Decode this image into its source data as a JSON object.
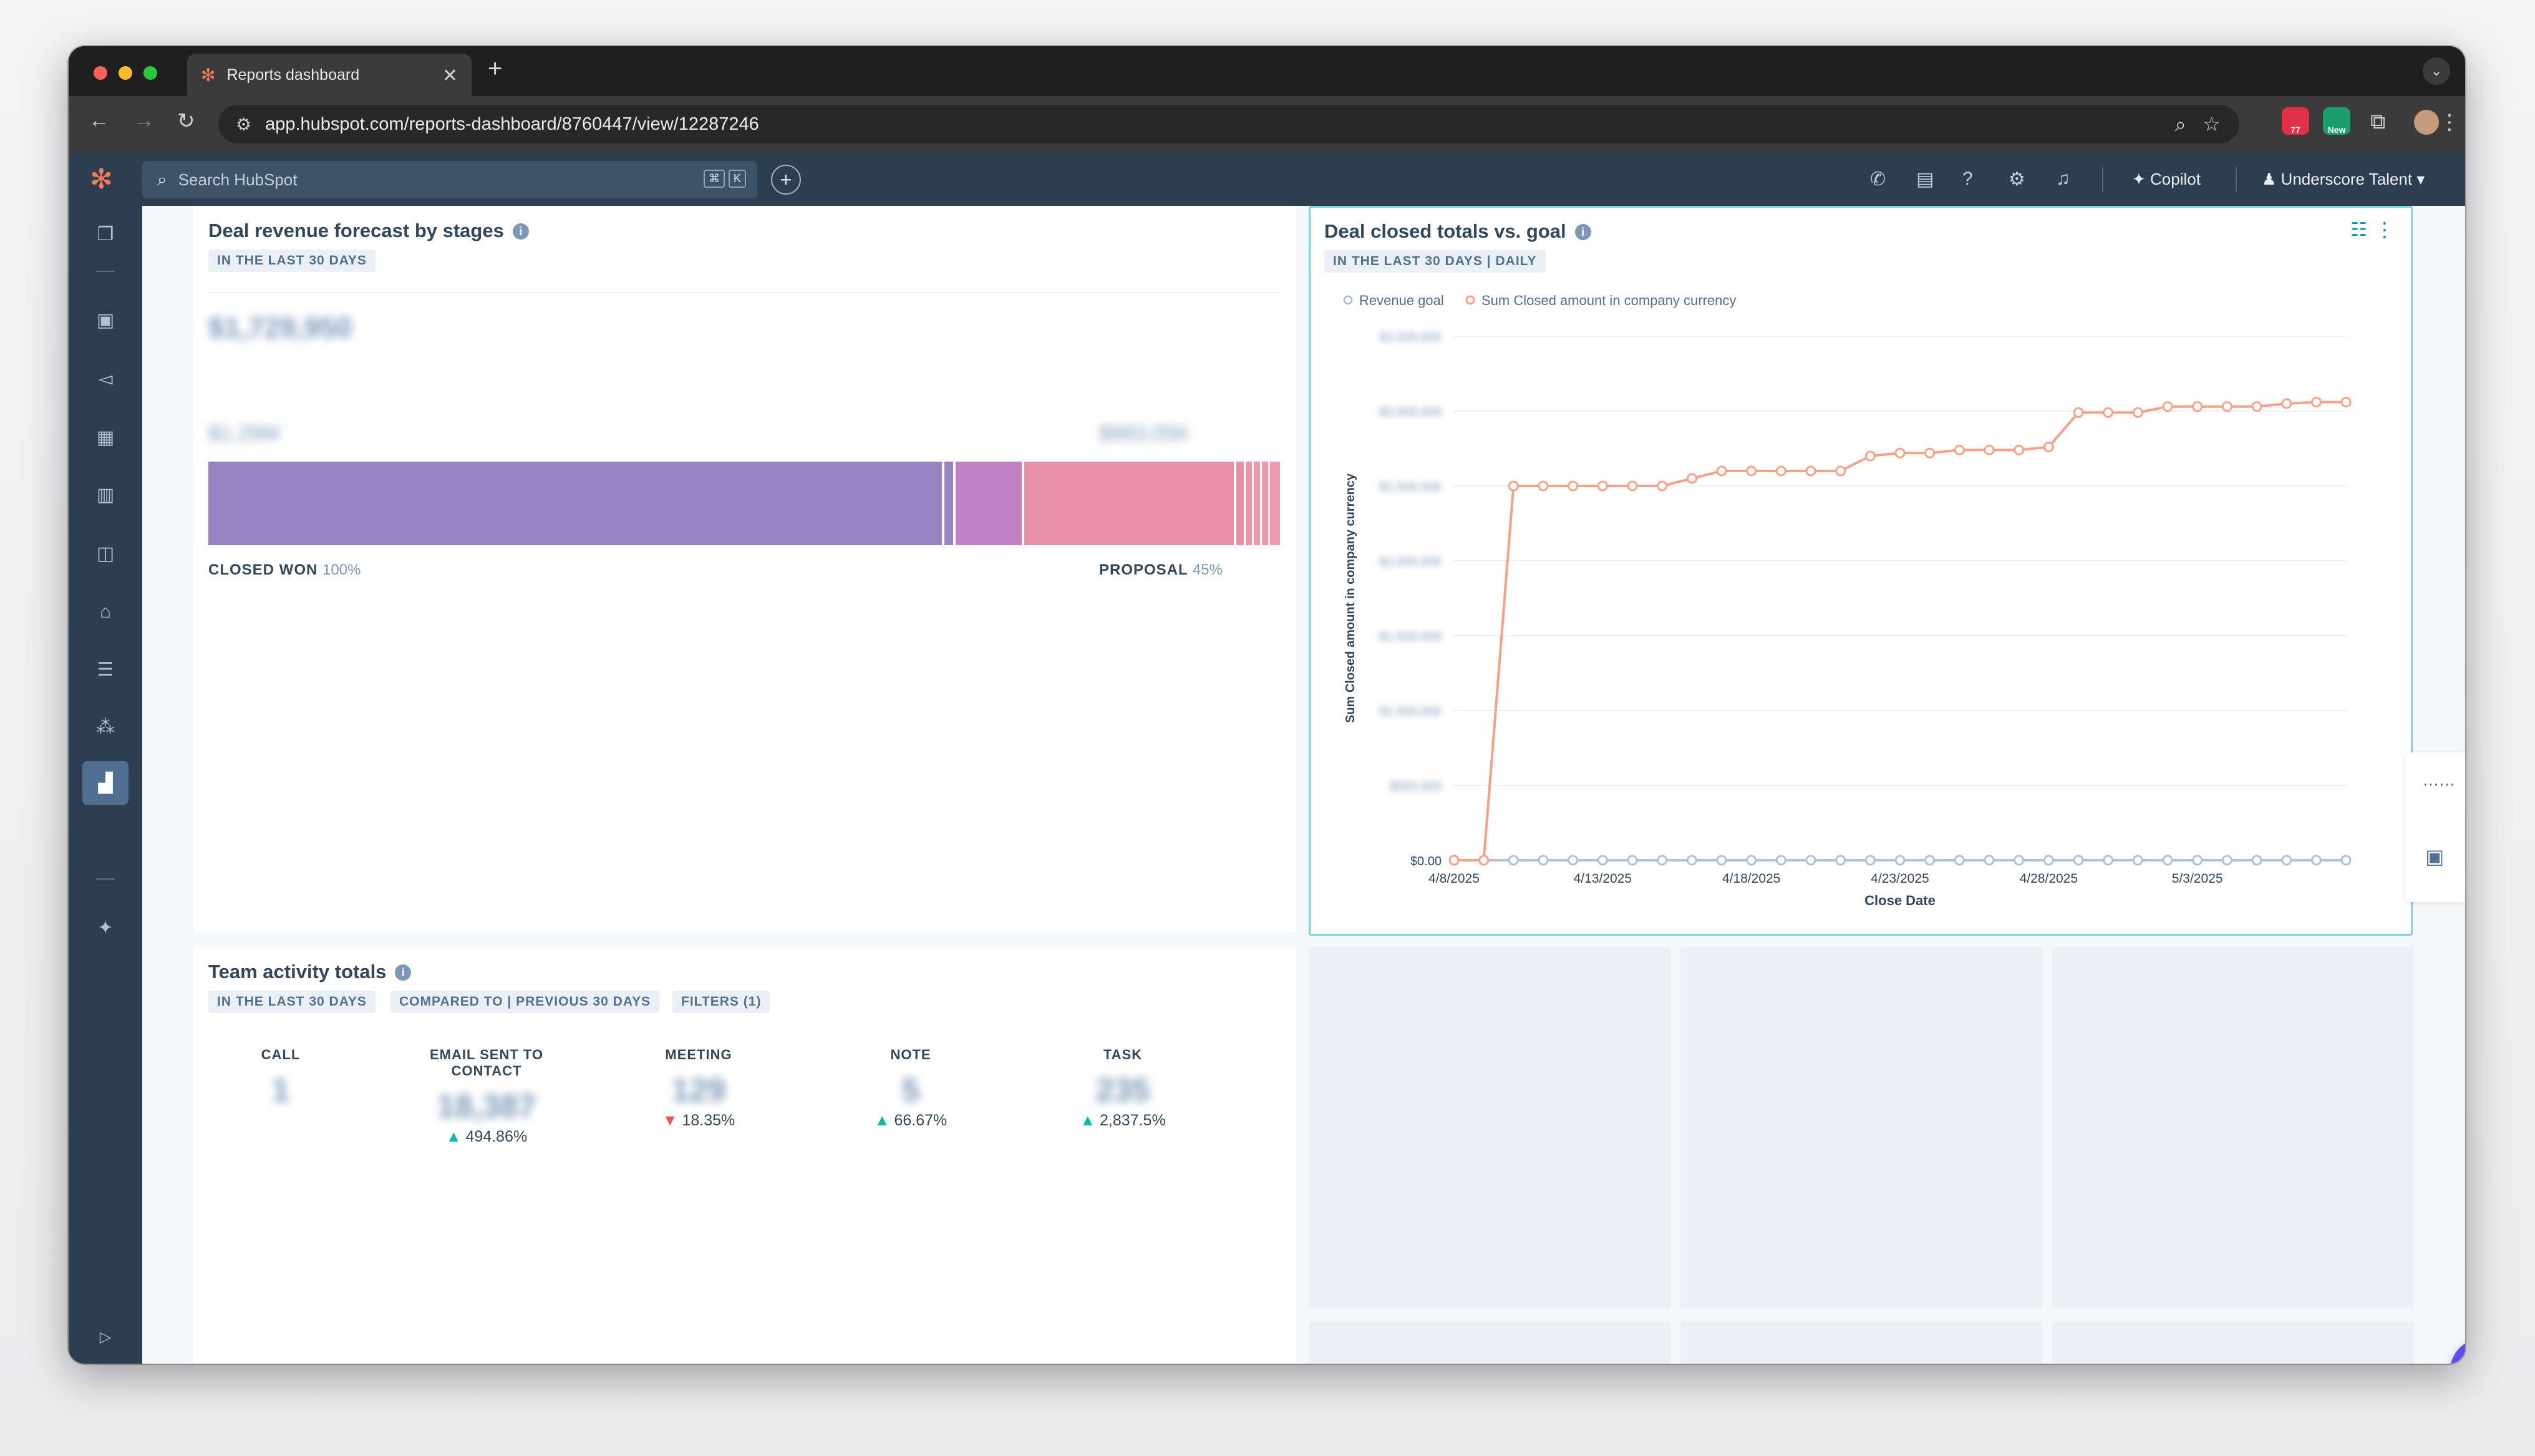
{
  "browser": {
    "tab_title": "Reports dashboard",
    "url": "app.hubspot.com/reports-dashboard/8760447/view/12287246",
    "ext_badge_count": "77",
    "ext_badge_new": "New"
  },
  "hubspot_nav": {
    "search_placeholder": "Search HubSpot",
    "kbd_1": "⌘",
    "kbd_2": "K",
    "copilot_label": "Copilot",
    "account_label": "Underscore Talent"
  },
  "forecast_card": {
    "title": "Deal revenue forecast by stages",
    "tag": "IN THE LAST 30 DAYS",
    "total_blurred": "$1,729,950",
    "stage_amount_1": "$1.29M",
    "stage_amount_2": "$993.05K",
    "stage_won_label": "CLOSED WON",
    "stage_won_pct": "100%",
    "stage_proposal_label": "PROPOSAL",
    "stage_proposal_pct": "45%",
    "colors": {
      "won": "#9784c2",
      "mid": "#c17fc4",
      "proposal": "#e88fa8"
    }
  },
  "closed_card": {
    "title": "Deal closed totals vs. goal",
    "tag": "IN THE LAST 30 DAYS | DAILY"
  },
  "chart_data": {
    "type": "line",
    "title": "Deal closed totals vs. goal",
    "xlabel": "Close Date",
    "ylabel": "Sum Closed amount in company currency",
    "y_zero_label": "$0.00",
    "y_tick_labels_blurred": [
      "$3,500,000",
      "$3,000,000",
      "$2,500,000",
      "$2,000,000",
      "$1,500,000",
      "$1,000,000",
      "$500,000"
    ],
    "x_tick_labels": [
      "4/8/2025",
      "4/13/2025",
      "4/18/2025",
      "4/23/2025",
      "4/28/2025",
      "5/3/2025"
    ],
    "x_tick_indices": [
      0,
      5,
      10,
      15,
      20,
      25
    ],
    "ylim": [
      0,
      3500000
    ],
    "grid": true,
    "legend": "top-left",
    "series": [
      {
        "name": "Revenue goal",
        "color": "#b0c1d3",
        "values": [
          0,
          0,
          0,
          0,
          0,
          0,
          0,
          0,
          0,
          0,
          0,
          0,
          0,
          0,
          0,
          0,
          0,
          0,
          0,
          0,
          0,
          0,
          0,
          0,
          0,
          0,
          0,
          0,
          0,
          0,
          0
        ]
      },
      {
        "name": "Sum Closed amount in company currency",
        "color": "#f8a088",
        "values": [
          0,
          0,
          2500000,
          2500000,
          2500000,
          2500000,
          2500000,
          2500000,
          2550000,
          2600000,
          2600000,
          2600000,
          2600000,
          2600000,
          2700000,
          2720000,
          2720000,
          2740000,
          2740000,
          2740000,
          2760000,
          2990000,
          2990000,
          2990000,
          3030000,
          3030000,
          3030000,
          3030000,
          3050000,
          3060000,
          3060000
        ]
      }
    ]
  },
  "activity_card": {
    "title": "Team activity totals",
    "tag_range": "IN THE LAST 30 DAYS",
    "tag_compare": "COMPARED TO | PREVIOUS 30 DAYS",
    "tag_filters": "FILTERS (1)",
    "metrics": [
      {
        "label": "CALL",
        "value": "1",
        "change": "",
        "direction": "none"
      },
      {
        "label": "EMAIL SENT TO CONTACT",
        "value": "18,387",
        "change": "494.86%",
        "direction": "up"
      },
      {
        "label": "MEETING",
        "value": "129",
        "change": "18.35%",
        "direction": "down"
      },
      {
        "label": "NOTE",
        "value": "5",
        "change": "66.67%",
        "direction": "up"
      },
      {
        "label": "TASK",
        "value": "235",
        "change": "2,837.5%",
        "direction": "up"
      }
    ]
  }
}
